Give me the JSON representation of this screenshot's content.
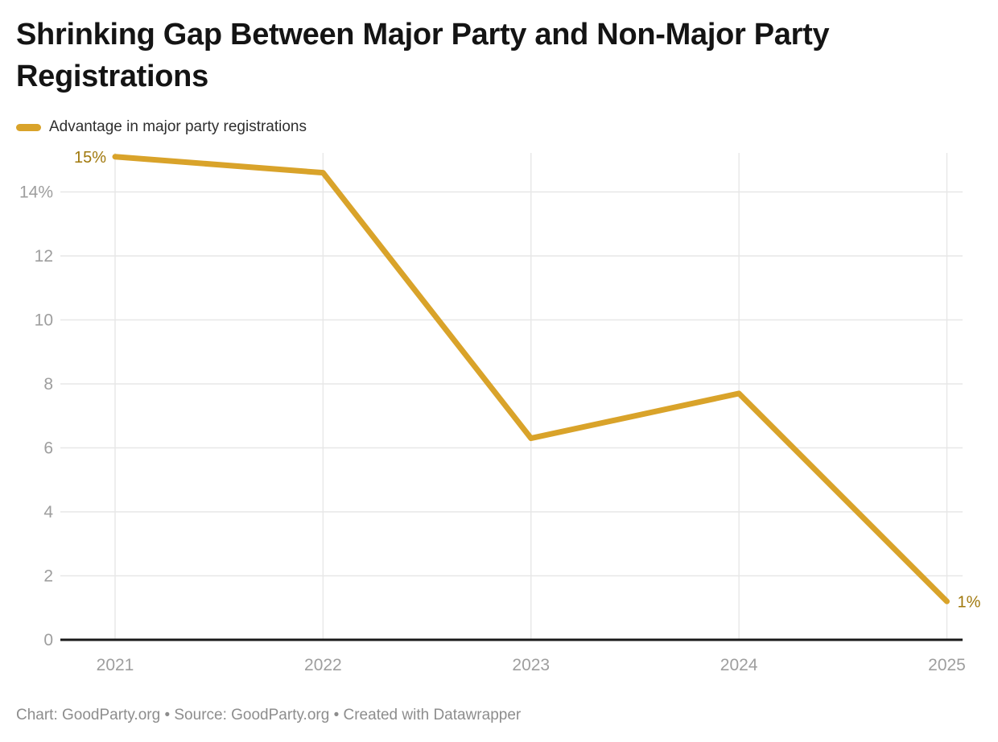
{
  "header": {
    "title": "Shrinking Gap Between Major Party and Non-Major Party Registrations"
  },
  "legend": {
    "items": [
      {
        "label": "Advantage in major party registrations",
        "color": "#d9a32a"
      }
    ]
  },
  "chart_data": {
    "type": "line",
    "title": "Shrinking Gap Between Major Party and Non-Major Party Registrations",
    "categories": [
      "2021",
      "2022",
      "2023",
      "2024",
      "2025"
    ],
    "series": [
      {
        "name": "Advantage in major party registrations",
        "values": [
          15.1,
          14.6,
          6.3,
          7.7,
          1.2
        ]
      }
    ],
    "y_ticks": [
      {
        "value": 0,
        "label": "0"
      },
      {
        "value": 2,
        "label": "2"
      },
      {
        "value": 4,
        "label": "4"
      },
      {
        "value": 6,
        "label": "6"
      },
      {
        "value": 8,
        "label": "8"
      },
      {
        "value": 10,
        "label": "10"
      },
      {
        "value": 12,
        "label": "12"
      },
      {
        "value": 14,
        "label": "14%"
      }
    ],
    "ylim": [
      0,
      15.2
    ],
    "xlabel": "",
    "ylabel": "",
    "grid": true,
    "legend_position": "top-left",
    "point_labels": [
      {
        "category": "2021",
        "text": "15%",
        "position": "left"
      },
      {
        "category": "2025",
        "text": "1%",
        "position": "right"
      }
    ],
    "colors": {
      "line": "#d9a32a",
      "point_label": "#a0780c",
      "grid": "#e7e7e7",
      "axis_text": "#9e9e9e",
      "baseline": "#1a1a1a"
    }
  },
  "footer": {
    "credits": "Chart: GoodParty.org • Source: GoodParty.org • Created with Datawrapper"
  }
}
